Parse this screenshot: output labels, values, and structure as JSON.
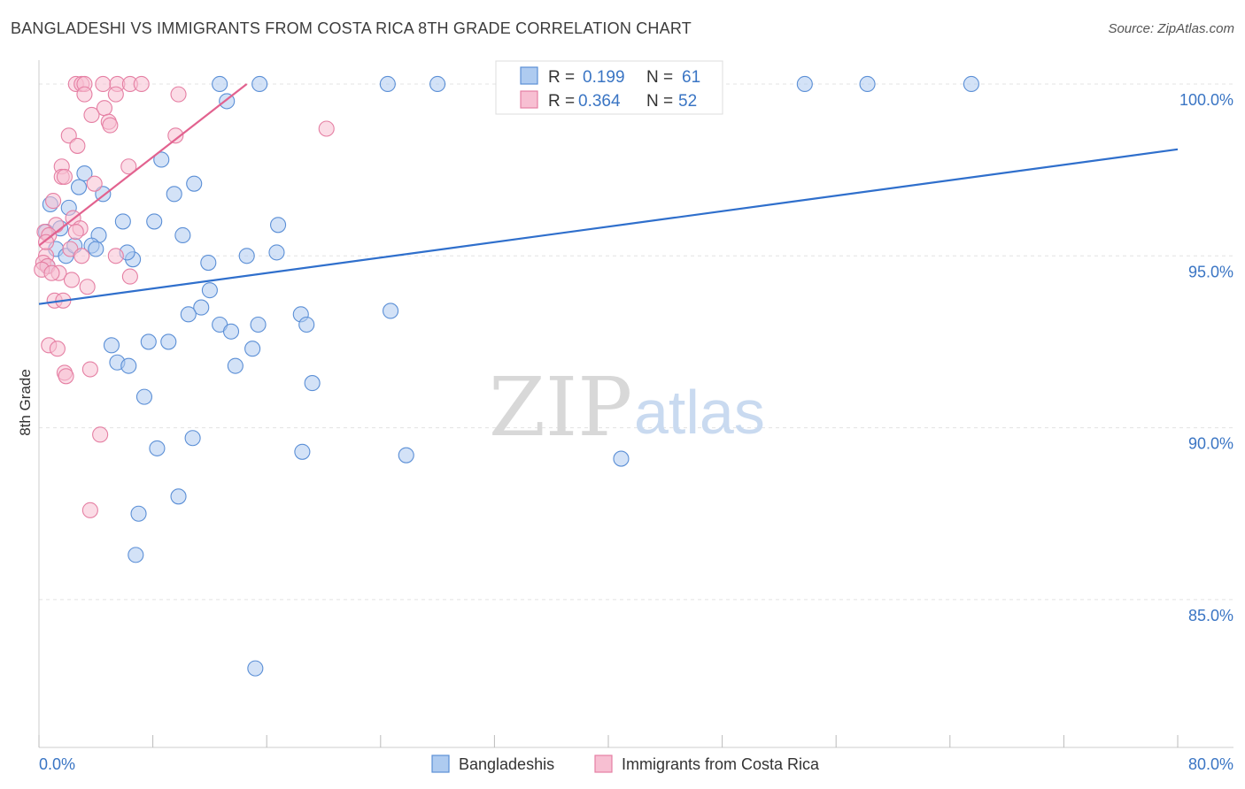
{
  "title": "BANGLADESHI VS IMMIGRANTS FROM COSTA RICA 8TH GRADE CORRELATION CHART",
  "source": "Source: ZipAtlas.com",
  "watermark": {
    "zip": "ZIP",
    "atlas": "atlas"
  },
  "colors": {
    "blue_fill": "#aecbf0",
    "blue_stroke": "#5b8fd6",
    "blue_line": "#2f6fcc",
    "pink_fill": "#f7bfd2",
    "pink_stroke": "#e57fa3",
    "pink_line": "#e2628f",
    "grid": "#e3e3e3",
    "tick_text": "#3a75c4"
  },
  "stats": {
    "r_label": "R =",
    "n_label": "N =",
    "series": [
      {
        "r": "0.199",
        "n": "61"
      },
      {
        "r": "0.364",
        "n": "52"
      }
    ]
  },
  "legend": [
    "Bangladeshis",
    "Immigrants from Costa Rica"
  ],
  "chart_data": {
    "type": "scatter",
    "title": "BANGLADESHI VS IMMIGRANTS FROM COSTA RICA 8TH GRADE CORRELATION CHART",
    "xlabel": "",
    "ylabel": "8th Grade",
    "xlim": [
      0,
      80
    ],
    "ylim": [
      80.7,
      100.9
    ],
    "x_tick_labels": [
      "0.0%",
      "80.0%"
    ],
    "y_ticks": [
      85,
      90,
      95,
      100
    ],
    "y_tick_labels": [
      "85.0%",
      "90.0%",
      "95.0%",
      "100.0%"
    ],
    "series": [
      {
        "name": "Bangladeshis",
        "trend": {
          "x": [
            0,
            80
          ],
          "y": [
            93.6,
            98.1
          ]
        },
        "points": [
          [
            12.7,
            100.0
          ],
          [
            15.5,
            100.0
          ],
          [
            24.5,
            100.0
          ],
          [
            28.0,
            100.0
          ],
          [
            53.8,
            100.0
          ],
          [
            58.2,
            100.0
          ],
          [
            65.5,
            100.0
          ],
          [
            13.2,
            99.5
          ],
          [
            8.6,
            97.8
          ],
          [
            3.2,
            97.4
          ],
          [
            10.9,
            97.1
          ],
          [
            2.8,
            97.0
          ],
          [
            9.5,
            96.8
          ],
          [
            4.5,
            96.8
          ],
          [
            0.8,
            96.5
          ],
          [
            2.1,
            96.4
          ],
          [
            5.9,
            96.0
          ],
          [
            8.1,
            96.0
          ],
          [
            16.8,
            95.9
          ],
          [
            1.5,
            95.8
          ],
          [
            0.5,
            95.7
          ],
          [
            4.2,
            95.6
          ],
          [
            10.1,
            95.6
          ],
          [
            3.7,
            95.3
          ],
          [
            4.0,
            95.2
          ],
          [
            1.2,
            95.2
          ],
          [
            16.7,
            95.1
          ],
          [
            14.6,
            95.0
          ],
          [
            1.9,
            95.0
          ],
          [
            6.6,
            94.9
          ],
          [
            11.9,
            94.8
          ],
          [
            0.6,
            94.7
          ],
          [
            12.0,
            94.0
          ],
          [
            11.4,
            93.5
          ],
          [
            24.7,
            93.4
          ],
          [
            10.5,
            93.3
          ],
          [
            18.4,
            93.3
          ],
          [
            12.7,
            93.0
          ],
          [
            15.4,
            93.0
          ],
          [
            18.8,
            93.0
          ],
          [
            13.5,
            92.8
          ],
          [
            5.1,
            92.4
          ],
          [
            7.7,
            92.5
          ],
          [
            9.1,
            92.5
          ],
          [
            15.0,
            92.3
          ],
          [
            5.5,
            91.9
          ],
          [
            6.3,
            91.8
          ],
          [
            13.8,
            91.8
          ],
          [
            19.2,
            91.3
          ],
          [
            7.4,
            90.9
          ],
          [
            10.8,
            89.7
          ],
          [
            8.3,
            89.4
          ],
          [
            18.5,
            89.3
          ],
          [
            25.8,
            89.2
          ],
          [
            40.9,
            89.1
          ],
          [
            9.8,
            88.0
          ],
          [
            7.0,
            87.5
          ],
          [
            6.8,
            86.3
          ],
          [
            15.2,
            83.0
          ],
          [
            6.2,
            95.1
          ],
          [
            2.5,
            95.3
          ]
        ]
      },
      {
        "name": "Immigrants from Costa Rica",
        "trend": {
          "x": [
            0,
            14.6
          ],
          "y": [
            95.3,
            100.0
          ]
        },
        "points": [
          [
            2.6,
            100.0
          ],
          [
            3.0,
            100.0
          ],
          [
            3.2,
            100.0
          ],
          [
            4.5,
            100.0
          ],
          [
            5.5,
            100.0
          ],
          [
            6.4,
            100.0
          ],
          [
            7.2,
            100.0
          ],
          [
            3.2,
            99.7
          ],
          [
            9.8,
            99.7
          ],
          [
            5.4,
            99.7
          ],
          [
            4.6,
            99.3
          ],
          [
            3.7,
            99.1
          ],
          [
            4.9,
            98.9
          ],
          [
            5.0,
            98.8
          ],
          [
            20.2,
            98.7
          ],
          [
            2.1,
            98.5
          ],
          [
            9.6,
            98.5
          ],
          [
            2.7,
            98.2
          ],
          [
            6.3,
            97.6
          ],
          [
            1.6,
            97.6
          ],
          [
            1.6,
            97.3
          ],
          [
            1.8,
            97.3
          ],
          [
            3.9,
            97.1
          ],
          [
            1.0,
            96.6
          ],
          [
            2.4,
            96.1
          ],
          [
            1.2,
            95.9
          ],
          [
            2.9,
            95.8
          ],
          [
            2.6,
            95.7
          ],
          [
            0.4,
            95.7
          ],
          [
            0.7,
            95.6
          ],
          [
            2.2,
            95.2
          ],
          [
            5.4,
            95.0
          ],
          [
            3.0,
            95.0
          ],
          [
            0.5,
            95.0
          ],
          [
            0.3,
            94.8
          ],
          [
            0.6,
            94.7
          ],
          [
            0.2,
            94.6
          ],
          [
            1.4,
            94.5
          ],
          [
            0.9,
            94.5
          ],
          [
            6.4,
            94.4
          ],
          [
            2.3,
            94.3
          ],
          [
            3.4,
            94.1
          ],
          [
            1.1,
            93.7
          ],
          [
            1.7,
            93.7
          ],
          [
            0.7,
            92.4
          ],
          [
            1.3,
            92.3
          ],
          [
            3.6,
            91.7
          ],
          [
            1.8,
            91.6
          ],
          [
            1.9,
            91.5
          ],
          [
            4.3,
            89.8
          ],
          [
            3.6,
            87.6
          ],
          [
            0.5,
            95.4
          ]
        ]
      }
    ]
  }
}
